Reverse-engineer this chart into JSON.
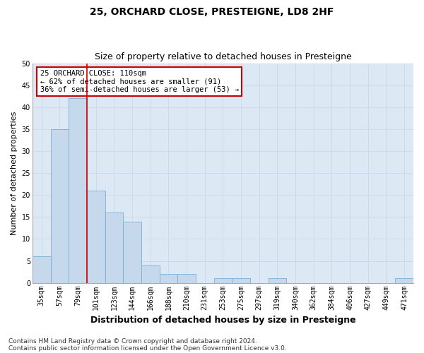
{
  "title": "25, ORCHARD CLOSE, PRESTEIGNE, LD8 2HF",
  "subtitle": "Size of property relative to detached houses in Presteigne",
  "xlabel": "Distribution of detached houses by size in Presteigne",
  "ylabel": "Number of detached properties",
  "categories": [
    "35sqm",
    "57sqm",
    "79sqm",
    "101sqm",
    "123sqm",
    "144sqm",
    "166sqm",
    "188sqm",
    "210sqm",
    "231sqm",
    "253sqm",
    "275sqm",
    "297sqm",
    "319sqm",
    "340sqm",
    "362sqm",
    "384sqm",
    "406sqm",
    "427sqm",
    "449sqm",
    "471sqm"
  ],
  "values": [
    6,
    35,
    42,
    21,
    16,
    14,
    4,
    2,
    2,
    0,
    1,
    1,
    0,
    1,
    0,
    0,
    0,
    0,
    0,
    0,
    1
  ],
  "bar_color": "#c5d8ec",
  "bar_edgecolor": "#7aaed4",
  "red_line_x": 2.5,
  "annotation_title": "25 ORCHARD CLOSE: 110sqm",
  "annotation_line1": "← 62% of detached houses are smaller (91)",
  "annotation_line2": "36% of semi-detached houses are larger (53) →",
  "annotation_box_color": "#ffffff",
  "annotation_box_edgecolor": "#cc0000",
  "red_line_color": "#cc0000",
  "ylim": [
    0,
    50
  ],
  "yticks": [
    0,
    5,
    10,
    15,
    20,
    25,
    30,
    35,
    40,
    45,
    50
  ],
  "footer1": "Contains HM Land Registry data © Crown copyright and database right 2024.",
  "footer2": "Contains public sector information licensed under the Open Government Licence v3.0.",
  "title_fontsize": 10,
  "subtitle_fontsize": 9,
  "xlabel_fontsize": 9,
  "ylabel_fontsize": 8,
  "tick_fontsize": 7,
  "footer_fontsize": 6.5,
  "annotation_fontsize": 7.5,
  "grid_color": "#c8d8ec",
  "background_color": "#dce9f5"
}
